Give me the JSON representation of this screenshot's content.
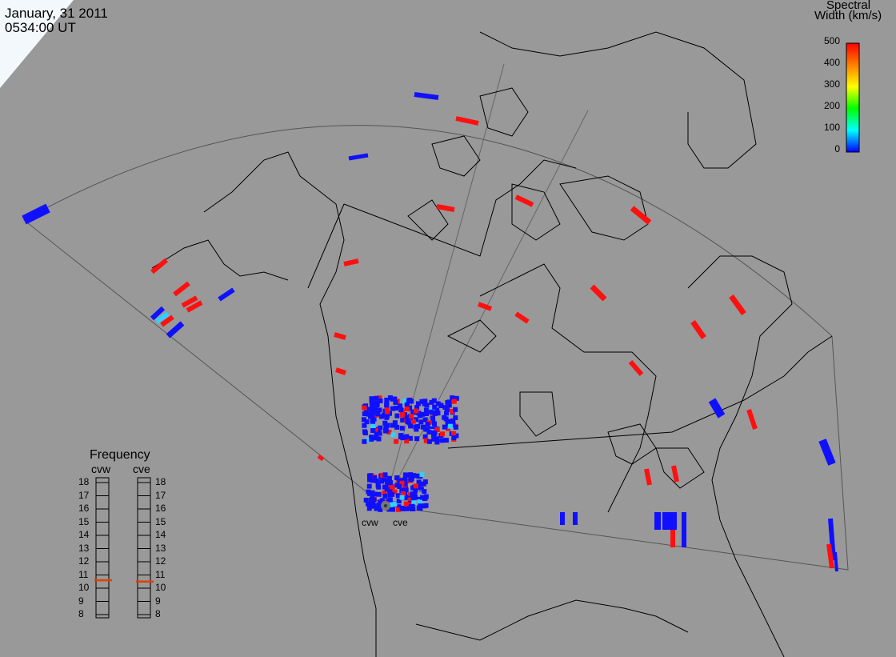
{
  "header": {
    "date": "January, 31 2011",
    "time": "0534:00 UT"
  },
  "colorbar": {
    "title_line1": "Spectral",
    "title_line2": "Width (km/s)",
    "ticks": [
      "500",
      "400",
      "300",
      "200",
      "100",
      "0"
    ],
    "colors": [
      "#ff0000",
      "#ff8000",
      "#ffff00",
      "#00ff00",
      "#00ffff",
      "#0000ff"
    ]
  },
  "frequency_panel": {
    "title": "Frequency",
    "left_radar": "cvw",
    "right_radar": "cve",
    "levels": [
      "18",
      "17",
      "16",
      "15",
      "14",
      "13",
      "12",
      "11",
      "10",
      "9",
      "8"
    ],
    "cvw_frequency_mhz": 10.6,
    "cve_frequency_mhz": 10.5,
    "marker_color": "#e04000"
  },
  "radar_sites": {
    "west_label": "cvw",
    "east_label": "cve"
  },
  "map": {
    "background_color": "#999999",
    "scatter_colors": {
      "low": "#1010ff",
      "high": "#ff1010",
      "mid": "#30d0ff"
    }
  }
}
